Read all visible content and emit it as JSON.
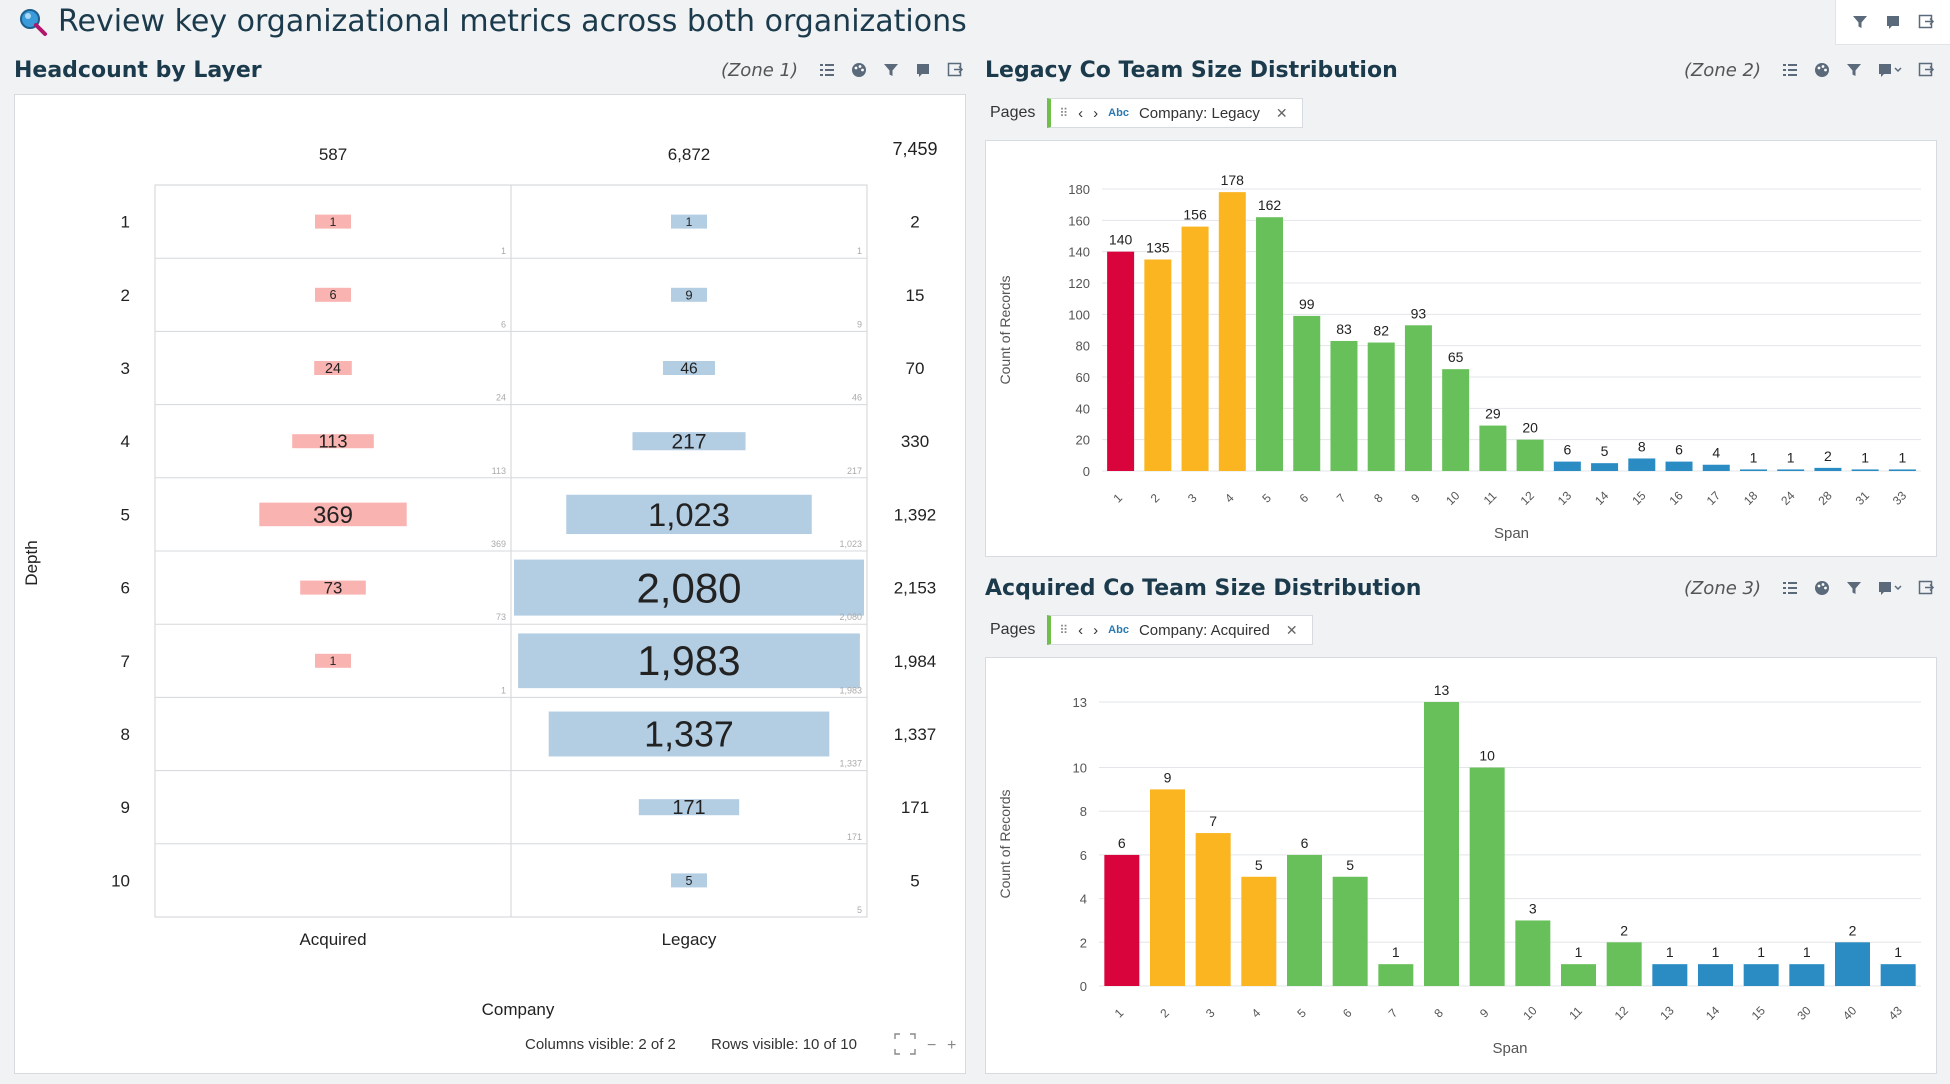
{
  "page": {
    "title": "Review key organizational metrics across both organizations"
  },
  "zone1": {
    "title": "Headcount by Layer",
    "zone_label": "(Zone 1)",
    "col_totals": [
      "587",
      "6,872"
    ],
    "grand_total": "7,459",
    "columns": [
      "Acquired",
      "Legacy"
    ],
    "x_axis_title": "Company",
    "y_axis_title": "Depth",
    "rows": [
      {
        "depth": "1",
        "acquired": 1,
        "legacy": 1,
        "total": "2"
      },
      {
        "depth": "2",
        "acquired": 6,
        "legacy": 9,
        "total": "15"
      },
      {
        "depth": "3",
        "acquired": 24,
        "legacy": 46,
        "total": "70"
      },
      {
        "depth": "4",
        "acquired": 113,
        "legacy": 217,
        "total": "330"
      },
      {
        "depth": "5",
        "acquired": 369,
        "legacy": 1023,
        "total": "1,392"
      },
      {
        "depth": "6",
        "acquired": 73,
        "legacy": 2080,
        "total": "2,153"
      },
      {
        "depth": "7",
        "acquired": 1,
        "legacy": 1983,
        "total": "1,984"
      },
      {
        "depth": "8",
        "acquired": null,
        "legacy": 1337,
        "total": "1,337"
      },
      {
        "depth": "9",
        "acquired": null,
        "legacy": 171,
        "total": "171"
      },
      {
        "depth": "10",
        "acquired": null,
        "legacy": 5,
        "total": "5"
      }
    ],
    "colors": {
      "acquired": "#f9b3b0",
      "legacy": "#b3cde3"
    },
    "footer": {
      "columns_visible": "Columns visible: 2 of 2",
      "rows_visible": "Rows visible: 10 of 10"
    }
  },
  "zone2": {
    "title": "Legacy Co Team Size Distribution",
    "zone_label": "(Zone 2)",
    "pages_label": "Pages",
    "pill_abc": "Abc",
    "pill_text": "Company: Legacy"
  },
  "zone3": {
    "title": "Acquired Co Team Size Distribution",
    "zone_label": "(Zone 3)",
    "pages_label": "Pages",
    "pill_abc": "Abc",
    "pill_text": "Company: Acquired"
  },
  "chart_data": [
    {
      "type": "bar",
      "xlabel": "Span",
      "ylabel": "Count of Records",
      "ylim": [
        0,
        180
      ],
      "yticks": [
        0,
        20,
        40,
        60,
        80,
        100,
        120,
        140,
        160,
        180
      ],
      "categories": [
        "1",
        "2",
        "3",
        "4",
        "5",
        "6",
        "7",
        "8",
        "9",
        "10",
        "11",
        "12",
        "13",
        "14",
        "15",
        "16",
        "17",
        "18",
        "24",
        "28",
        "31",
        "33"
      ],
      "values": [
        140,
        135,
        156,
        178,
        162,
        99,
        83,
        82,
        93,
        65,
        29,
        20,
        6,
        5,
        8,
        6,
        4,
        1,
        1,
        2,
        1,
        1
      ],
      "colors": [
        "#d9043c",
        "#fbb521",
        "#fbb521",
        "#fbb521",
        "#68c05a",
        "#68c05a",
        "#68c05a",
        "#68c05a",
        "#68c05a",
        "#68c05a",
        "#68c05a",
        "#68c05a",
        "#2b8cc4",
        "#2b8cc4",
        "#2b8cc4",
        "#2b8cc4",
        "#2b8cc4",
        "#2b8cc4",
        "#2b8cc4",
        "#2b8cc4",
        "#2b8cc4",
        "#2b8cc4"
      ],
      "grid": true
    },
    {
      "type": "bar",
      "xlabel": "Span",
      "ylabel": "Count of Records",
      "ylim": [
        0,
        13
      ],
      "yticks": [
        0,
        2,
        4,
        6,
        8,
        10,
        13
      ],
      "categories": [
        "1",
        "2",
        "3",
        "4",
        "5",
        "6",
        "7",
        "8",
        "9",
        "10",
        "11",
        "12",
        "13",
        "14",
        "15",
        "30",
        "40",
        "43"
      ],
      "values": [
        6,
        9,
        7,
        5,
        6,
        5,
        1,
        13,
        10,
        3,
        1,
        2,
        1,
        1,
        1,
        1,
        2,
        1
      ],
      "colors": [
        "#d9043c",
        "#fbb521",
        "#fbb521",
        "#fbb521",
        "#68c05a",
        "#68c05a",
        "#68c05a",
        "#68c05a",
        "#68c05a",
        "#68c05a",
        "#68c05a",
        "#68c05a",
        "#2b8cc4",
        "#2b8cc4",
        "#2b8cc4",
        "#2b8cc4",
        "#2b8cc4",
        "#2b8cc4"
      ],
      "grid": true
    }
  ]
}
